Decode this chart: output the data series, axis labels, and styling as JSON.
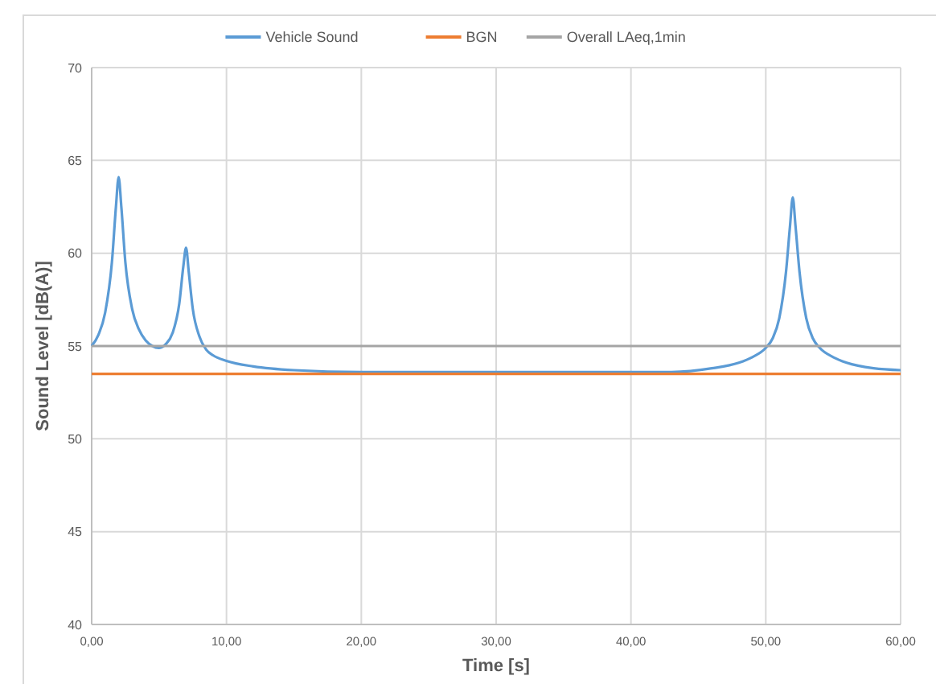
{
  "chart_data": {
    "type": "line",
    "xlabel": "Time [s]",
    "ylabel": "Sound Level [dB(A)]",
    "xlim": [
      0,
      60
    ],
    "ylim": [
      40,
      70
    ],
    "xticks": [
      {
        "value": 0,
        "label": "0,00"
      },
      {
        "value": 10,
        "label": "10,00"
      },
      {
        "value": 20,
        "label": "20,00"
      },
      {
        "value": 30,
        "label": "30,00"
      },
      {
        "value": 40,
        "label": "40,00"
      },
      {
        "value": 50,
        "label": "50,00"
      },
      {
        "value": 60,
        "label": "60,00"
      }
    ],
    "yticks": [
      40,
      45,
      50,
      55,
      60,
      65,
      70
    ],
    "grid": true,
    "legend": "top",
    "marker": "none",
    "line_style": "solid",
    "series": [
      {
        "name": "Vehicle Sound",
        "color": "#5b9bd5",
        "x": [
          0,
          0.5,
          1,
          1.5,
          1.8,
          2,
          2.2,
          2.5,
          3,
          3.5,
          4,
          4.5,
          5,
          5.5,
          6,
          6.5,
          6.8,
          7,
          7.2,
          7.5,
          8,
          8.5,
          9,
          10,
          12,
          15,
          20,
          25,
          30,
          35,
          40,
          43,
          46,
          48,
          49,
          50,
          50.5,
          51,
          51.5,
          51.8,
          52,
          52.2,
          52.5,
          53,
          53.5,
          54,
          55,
          56,
          58,
          60
        ],
        "values": [
          55.0,
          55.6,
          56.8,
          59.5,
          62.5,
          64.1,
          62.5,
          59.5,
          57.0,
          55.9,
          55.3,
          55.0,
          54.9,
          55.1,
          55.7,
          57.3,
          59.3,
          60.3,
          59.0,
          57.0,
          55.5,
          54.8,
          54.5,
          54.2,
          53.9,
          53.7,
          53.6,
          53.6,
          53.6,
          53.6,
          53.6,
          53.6,
          53.8,
          54.1,
          54.4,
          54.9,
          55.4,
          56.5,
          59.0,
          61.5,
          63.0,
          61.5,
          59.0,
          56.5,
          55.4,
          54.9,
          54.4,
          54.1,
          53.8,
          53.7
        ]
      },
      {
        "name": "BGN",
        "color": "#ed7d31",
        "x": [
          0,
          60
        ],
        "values": [
          53.5,
          53.5
        ]
      },
      {
        "name": "Overall LAeq,1min",
        "color": "#a5a5a5",
        "x": [
          0,
          60
        ],
        "values": [
          55.0,
          55.0
        ]
      }
    ]
  }
}
